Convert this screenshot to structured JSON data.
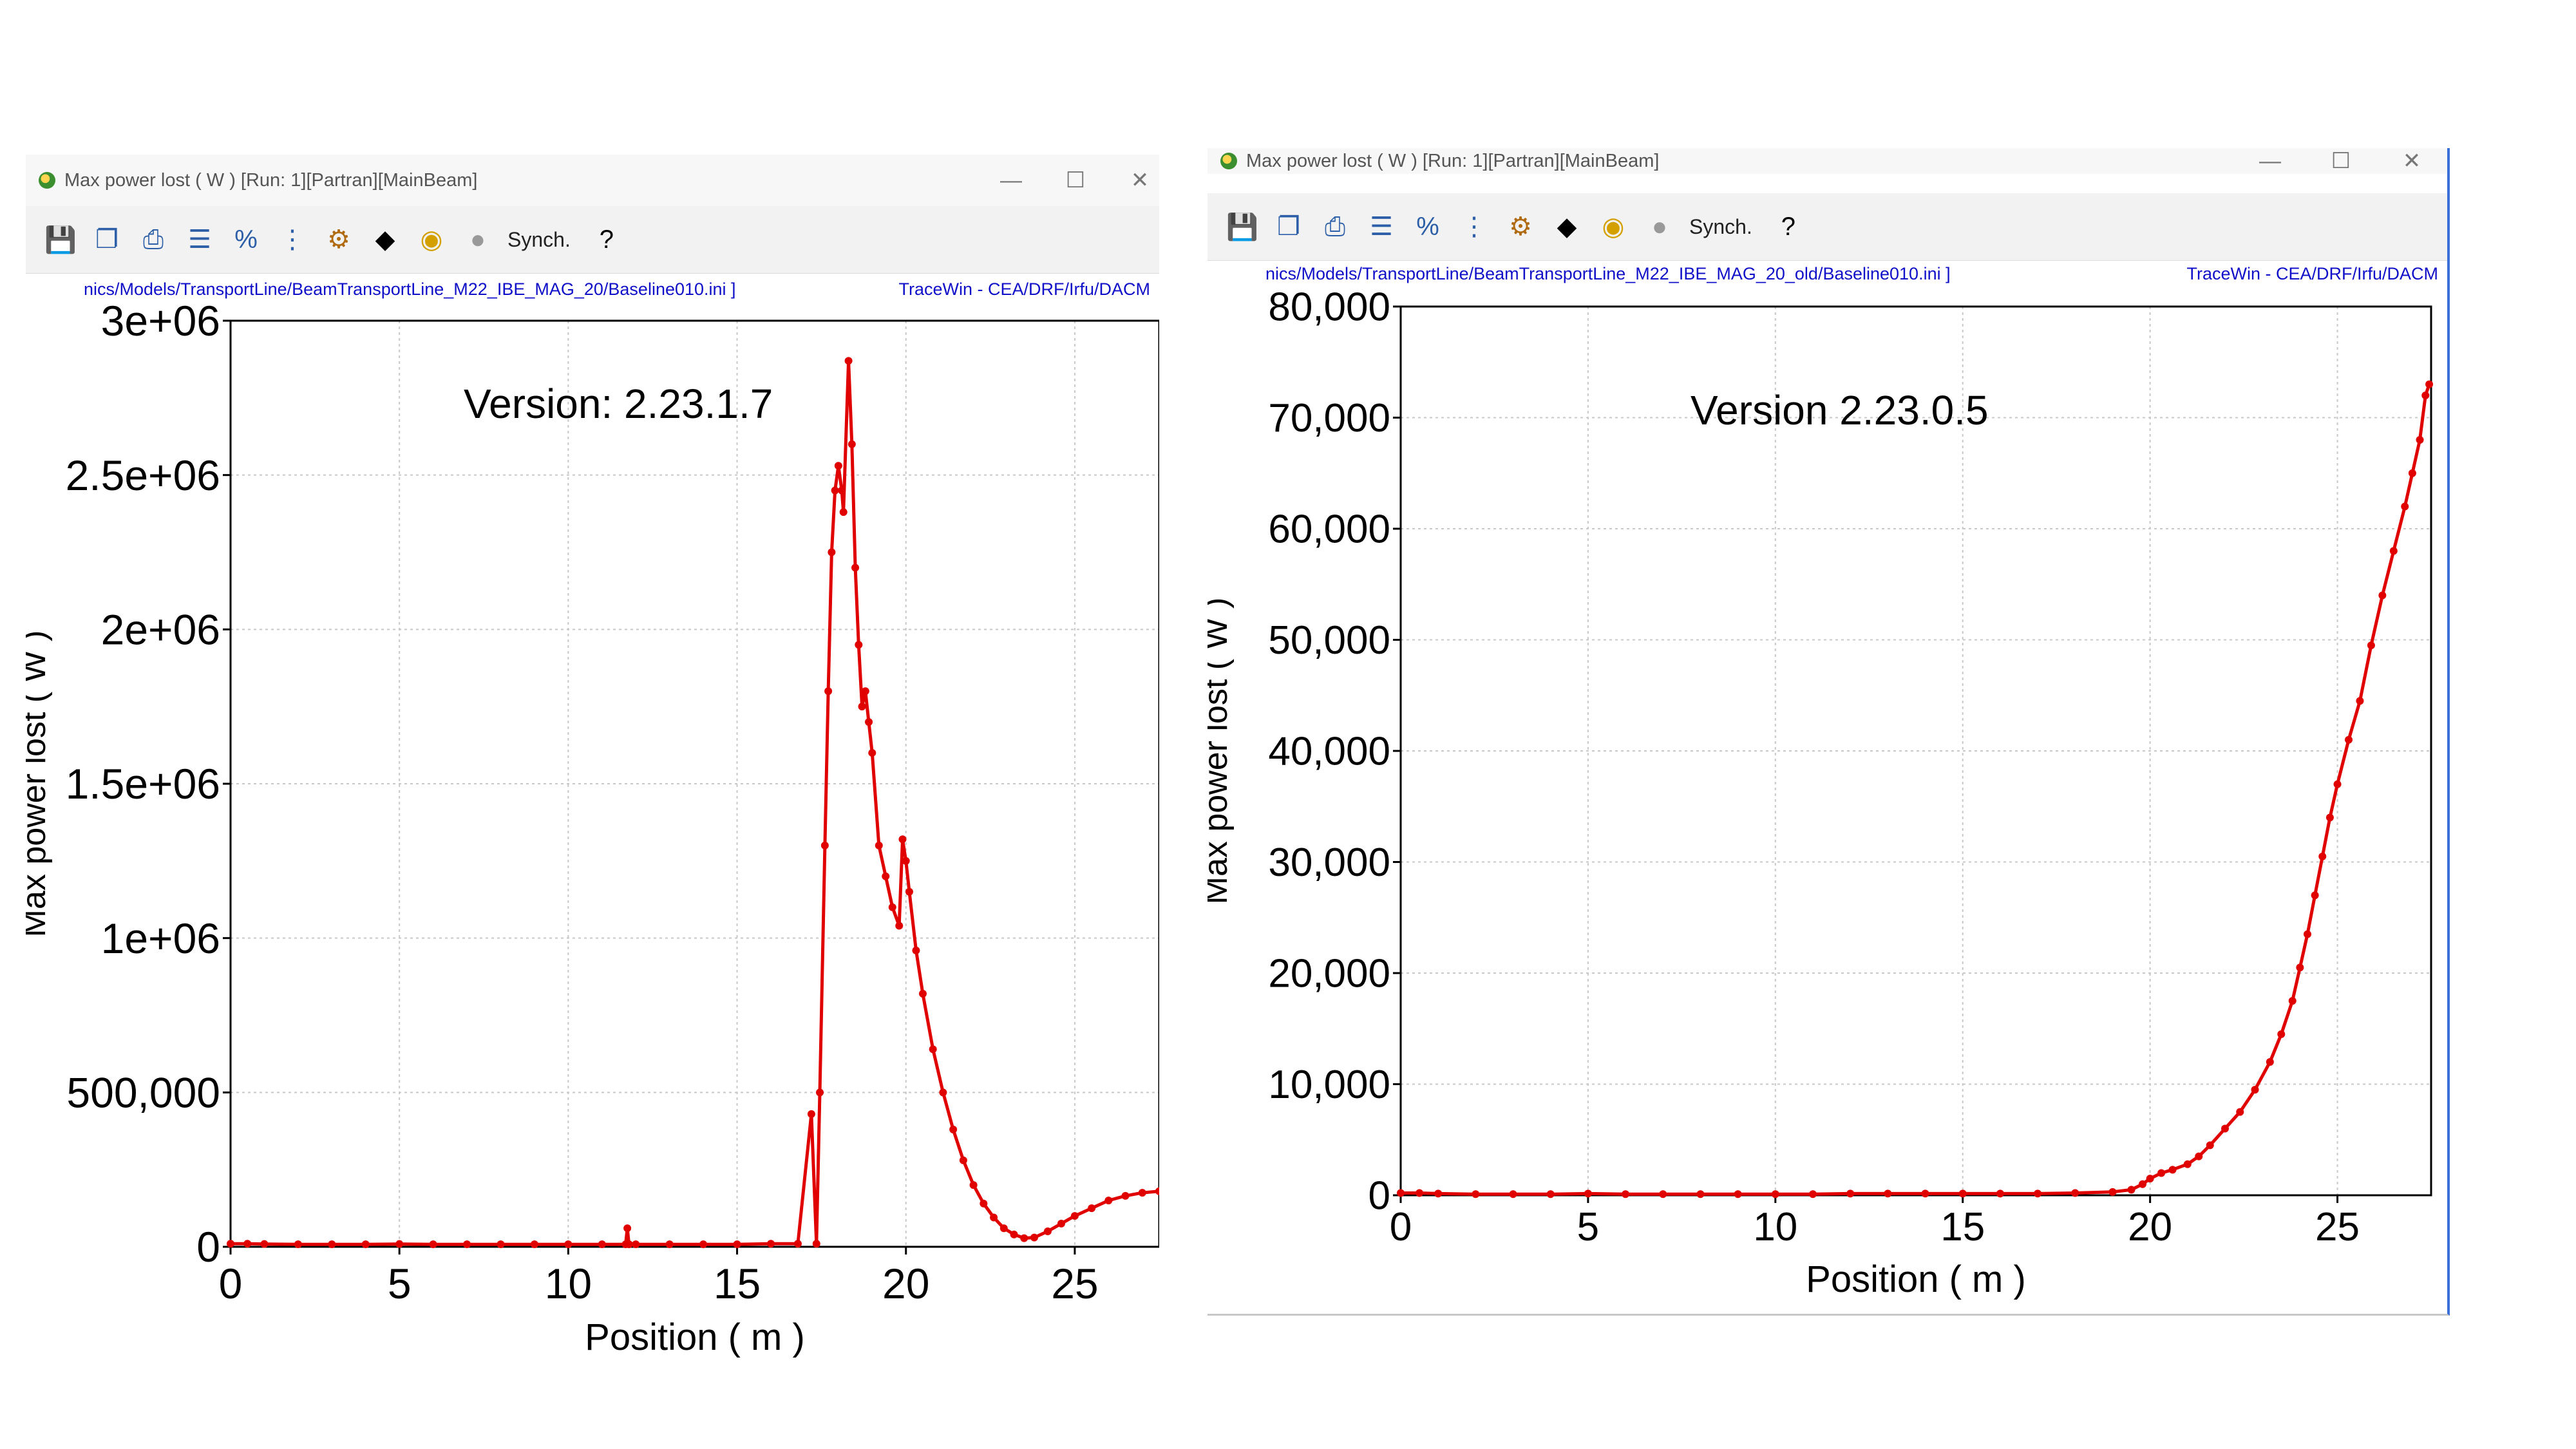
{
  "left_window": {
    "title": "Max power lost ( W ) [Run: 1][Partran][MainBeam]",
    "path": "nics/Models/TransportLine/BeamTransportLine_M22_IBE_MAG_20/Baseline010.ini ]",
    "org": "TraceWin - CEA/DRF/Irfu/DACM",
    "synch_label": "Synch.",
    "version_label": "Version: 2.23.1.7"
  },
  "right_window": {
    "title": "Max power lost ( W ) [Run: 1][Partran][MainBeam]",
    "path": "nics/Models/TransportLine/BeamTransportLine_M22_IBE_MAG_20_old/Baseline010.ini ]",
    "org": "TraceWin - CEA/DRF/Irfu/DACM",
    "synch_label": "Synch.",
    "version_label": "Version 2.23.0.5"
  },
  "window_controls": {
    "minimize": "—",
    "maximize": "☐",
    "close": "✕"
  },
  "toolbar_icons": [
    "save-icon",
    "copy-icon",
    "print-icon",
    "list-icon",
    "percent-icon",
    "bars-icon",
    "settings-icon",
    "element-icon",
    "target-icon",
    "circle-icon"
  ],
  "colors": {
    "series": "#e00000",
    "grid": "#c8c8c8",
    "path_text": "#1010c8"
  },
  "chart_data": [
    {
      "type": "line",
      "xlabel": "Position ( m )",
      "ylabel": "Max power lost ( W )",
      "xlim": [
        0,
        27.5
      ],
      "ylim": [
        0,
        3000000
      ],
      "xticks": [
        0,
        5,
        10,
        15,
        20,
        25
      ],
      "yticks": [
        0,
        500000,
        1000000,
        1500000,
        2000000,
        2500000,
        3000000
      ],
      "ytick_labels": [
        "0",
        "500,000",
        "1e+06",
        "1.5e+06",
        "2e+06",
        "2.5e+06",
        "3e+06"
      ],
      "grid": true,
      "series": [
        {
          "color": "#e00000",
          "x": [
            0,
            0.5,
            1,
            2,
            3,
            4,
            5,
            6,
            7,
            8,
            9,
            10,
            11,
            11.7,
            11.75,
            11.8,
            12,
            13,
            14,
            15,
            16,
            16.8,
            17.2,
            17.35,
            17.45,
            17.6,
            17.7,
            17.8,
            17.9,
            18.0,
            18.1,
            18.15,
            18.3,
            18.4,
            18.5,
            18.6,
            18.7,
            18.8,
            18.9,
            19.0,
            19.2,
            19.4,
            19.6,
            19.8,
            19.9,
            20.0,
            20.1,
            20.3,
            20.5,
            20.8,
            21.1,
            21.4,
            21.7,
            22.0,
            22.3,
            22.6,
            22.9,
            23.2,
            23.5,
            23.8,
            24.2,
            24.6,
            25.0,
            25.5,
            26.0,
            26.5,
            27.0,
            27.5
          ],
          "y": [
            10000,
            10000,
            9000,
            8000,
            8000,
            8000,
            9000,
            8000,
            8000,
            8000,
            8000,
            8000,
            8000,
            8000,
            60000,
            8000,
            8000,
            8000,
            8000,
            8000,
            10000,
            10000,
            430000,
            10000,
            500000,
            1300000,
            1800000,
            2250000,
            2450000,
            2530000,
            2450000,
            2380000,
            2870000,
            2600000,
            2200000,
            1950000,
            1750000,
            1800000,
            1700000,
            1600000,
            1300000,
            1200000,
            1100000,
            1040000,
            1320000,
            1250000,
            1150000,
            960000,
            820000,
            640000,
            500000,
            380000,
            280000,
            200000,
            140000,
            95000,
            60000,
            40000,
            28000,
            30000,
            50000,
            75000,
            100000,
            125000,
            150000,
            165000,
            175000,
            180000
          ]
        }
      ]
    },
    {
      "type": "line",
      "xlabel": "Position ( m )",
      "ylabel": "Max power lost ( W )",
      "xlim": [
        0,
        27.5
      ],
      "ylim": [
        0,
        80000
      ],
      "xticks": [
        0,
        5,
        10,
        15,
        20,
        25
      ],
      "yticks": [
        0,
        10000,
        20000,
        30000,
        40000,
        50000,
        60000,
        70000,
        80000
      ],
      "ytick_labels": [
        "0",
        "10,000",
        "20,000",
        "30,000",
        "40,000",
        "50,000",
        "60,000",
        "70,000",
        "80,000"
      ],
      "grid": true,
      "series": [
        {
          "color": "#e00000",
          "x": [
            0,
            0.5,
            1,
            2,
            3,
            4,
            5,
            6,
            7,
            8,
            9,
            10,
            11,
            12,
            13,
            14,
            15,
            16,
            17,
            18,
            19,
            19.5,
            19.8,
            20.0,
            20.3,
            20.6,
            21.0,
            21.3,
            21.6,
            22.0,
            22.4,
            22.8,
            23.2,
            23.5,
            23.8,
            24.0,
            24.2,
            24.4,
            24.6,
            24.8,
            25.0,
            25.3,
            25.6,
            25.9,
            26.2,
            26.5,
            26.8,
            27.0,
            27.2,
            27.35,
            27.45
          ],
          "y": [
            200,
            200,
            150,
            100,
            100,
            100,
            150,
            100,
            100,
            100,
            100,
            100,
            100,
            150,
            150,
            150,
            150,
            150,
            150,
            200,
            300,
            500,
            1000,
            1500,
            2000,
            2300,
            2800,
            3500,
            4500,
            6000,
            7500,
            9500,
            12000,
            14500,
            17500,
            20500,
            23500,
            27000,
            30500,
            34000,
            37000,
            41000,
            44500,
            49500,
            54000,
            58000,
            62000,
            65000,
            68000,
            72000,
            73000
          ]
        }
      ]
    }
  ]
}
